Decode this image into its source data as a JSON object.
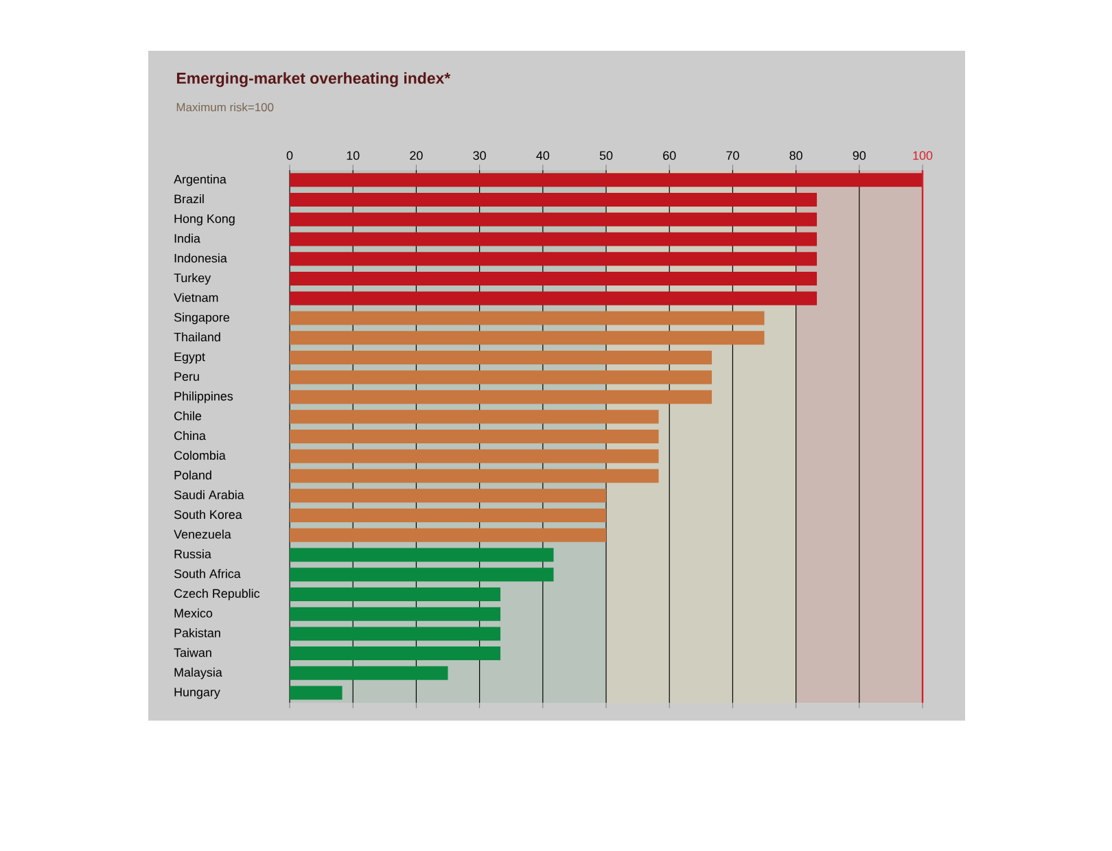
{
  "chart_data": {
    "type": "bar",
    "orientation": "horizontal",
    "title": "Emerging-market overheating index*",
    "subtitle": "Maximum risk=100",
    "categories": [
      "Argentina",
      "Brazil",
      "Hong Kong",
      "India",
      "Indonesia",
      "Turkey",
      "Vietnam",
      "Singapore",
      "Thailand",
      "Egypt",
      "Peru",
      "Philippines",
      "Chile",
      "China",
      "Colombia",
      "Poland",
      "Saudi Arabia",
      "South Korea",
      "Venezuela",
      "Russia",
      "South Africa",
      "Czech Republic",
      "Mexico",
      "Pakistan",
      "Taiwan",
      "Malaysia",
      "Hungary"
    ],
    "values": [
      100,
      83.3,
      83.3,
      83.3,
      83.3,
      83.3,
      83.3,
      75,
      75,
      66.7,
      66.7,
      66.7,
      58.3,
      58.3,
      58.3,
      58.3,
      50,
      50,
      50,
      41.7,
      41.7,
      33.3,
      33.3,
      33.3,
      33.3,
      25,
      8.3
    ],
    "colors": [
      "#c0161f",
      "#c0161f",
      "#c0161f",
      "#c0161f",
      "#c0161f",
      "#c0161f",
      "#c0161f",
      "#c87740",
      "#c87740",
      "#c87740",
      "#c87740",
      "#c87740",
      "#c87740",
      "#c87740",
      "#c87740",
      "#c87740",
      "#c87740",
      "#c87740",
      "#c87740",
      "#0a8a40",
      "#0a8a40",
      "#0a8a40",
      "#0a8a40",
      "#0a8a40",
      "#0a8a40",
      "#0a8a40",
      "#0a8a40"
    ],
    "xlim": [
      0,
      100
    ],
    "xticks": [
      0,
      10,
      20,
      30,
      40,
      50,
      60,
      70,
      80,
      90,
      100
    ],
    "grid": "x",
    "bands": [
      {
        "axis": "x",
        "from": 0,
        "to": 50,
        "color": "#b8c4bc"
      },
      {
        "axis": "x",
        "from": 50,
        "to": 80,
        "color": "#d0cebe"
      },
      {
        "axis": "x",
        "from": 80,
        "to": 100,
        "color": "#cbb8b2"
      }
    ],
    "ref_lines": [
      {
        "axis": "x",
        "value": 100,
        "color": "#d8202a"
      }
    ]
  }
}
